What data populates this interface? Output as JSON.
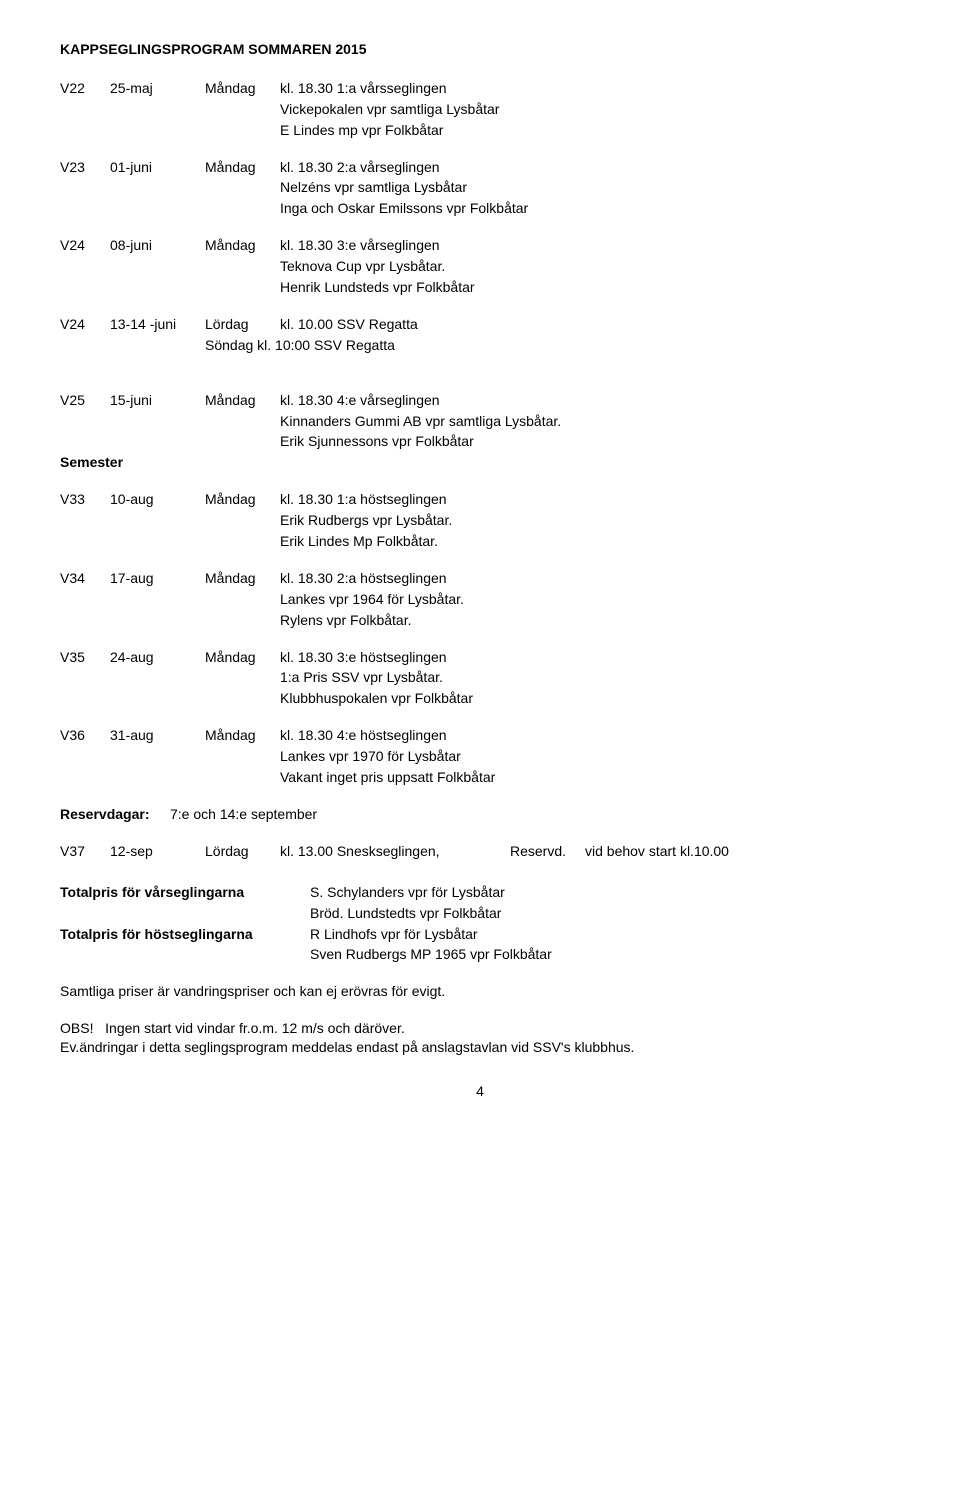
{
  "title": "KAPPSEGLINGSPROGRAM  SOMMAREN 2015",
  "events": [
    {
      "wk": "V22",
      "date": "25-maj",
      "day": "Måndag",
      "head": "kl. 18.30 1:a vårsseglingen",
      "subs": [
        "Vickepokalen vpr samtliga Lysbåtar",
        "E Lindes mp vpr Folkbåtar"
      ]
    },
    {
      "wk": "V23",
      "date": "01-juni",
      "day": "Måndag",
      "head": "kl. 18.30 2:a vårseglingen",
      "subs": [
        "Nelzéns vpr  samtliga Lysbåtar",
        " Inga och Oskar Emilssons vpr Folkbåtar"
      ]
    },
    {
      "wk": "V24",
      "date": "08-juni",
      "day": "Måndag",
      "head": "kl. 18.30 3:e vårseglingen",
      "subs": [
        "Teknova Cup vpr  Lysbåtar.",
        "Henrik Lundsteds vpr Folkbåtar"
      ]
    },
    {
      "wk": "V24",
      "date": "13-14 -juni",
      "day": "Lördag",
      "head": "kl. 10.00 SSV Regatta",
      "sun": "Söndag kl. 10:00 SSV Regatta",
      "gapAfter": true
    },
    {
      "wk": "V25",
      "date": "15-juni",
      "day": "Måndag",
      "head": "kl. 18.30 4:e vårseglingen",
      "subs": [
        "Kinnanders Gummi AB vpr  samtliga Lysbåtar.",
        "Erik Sjunnessons vpr  Folkbåtar"
      ],
      "nogap": true
    }
  ],
  "semester": "Semester",
  "autumn": [
    {
      "wk": "V33",
      "date": "10-aug",
      "day": "Måndag",
      "head": "kl. 18.30 1:a höstseglingen",
      "subs": [
        "Erik Rudbergs vpr  Lysbåtar.",
        "Erik Lindes Mp  Folkbåtar."
      ]
    },
    {
      "wk": "V34",
      "date": "17-aug",
      "day": "Måndag",
      "head": "kl. 18.30 2:a höstseglingen",
      "subs": [
        "Lankes vpr 1964 för Lysbåtar.",
        "Rylens vpr Folkbåtar."
      ]
    },
    {
      "wk": "V35",
      "date": "24-aug",
      "day": "Måndag",
      "head": "kl. 18.30 3:e höstseglingen",
      "subs": [
        "1:a Pris SSV vpr Lysbåtar.",
        "Klubbhuspokalen vpr Folkbåtar"
      ]
    },
    {
      "wk": "V36",
      "date": "31-aug",
      "day": "Måndag",
      "head": "kl. 18.30 4:e höstseglingen",
      "subs": [
        "Lankes vpr 1970 för Lysbåtar",
        "Vakant inget pris uppsatt Folkbåtar"
      ]
    }
  ],
  "reserveLabel": "Reservdagar:",
  "reserveText": "7:e och 14:e september",
  "v37": {
    "wk": "V37",
    "date": "12-sep",
    "day": "Lördag",
    "time": "kl.  13.00 Sneskseglingen,",
    "res": "Reservd.",
    "tail": "vid behov start kl.10.00"
  },
  "totals": [
    {
      "label": "Totalpris för vårseglingarna",
      "a": "S. Schylanders vpr  för Lysbåtar",
      "b": "Bröd. Lundstedts vpr Folkbåtar"
    },
    {
      "label": "Totalpris för höstseglingarna",
      "a": "R Lindhofs vpr för Lysbåtar",
      "b": " Sven Rudbergs MP 1965 vpr Folkbåtar"
    }
  ],
  "note1": "Samtliga priser är vandringspriser och kan ej erövras för evigt.",
  "obsLabel": "OBS!",
  "obsText": "Ingen start vid vindar fr.o.m. 12 m/s och däröver.",
  "note3": "Ev.ändringar i detta seglingsprogram meddelas endast på anslagstavlan vid SSV's klubbhus.",
  "pagenum": "4"
}
